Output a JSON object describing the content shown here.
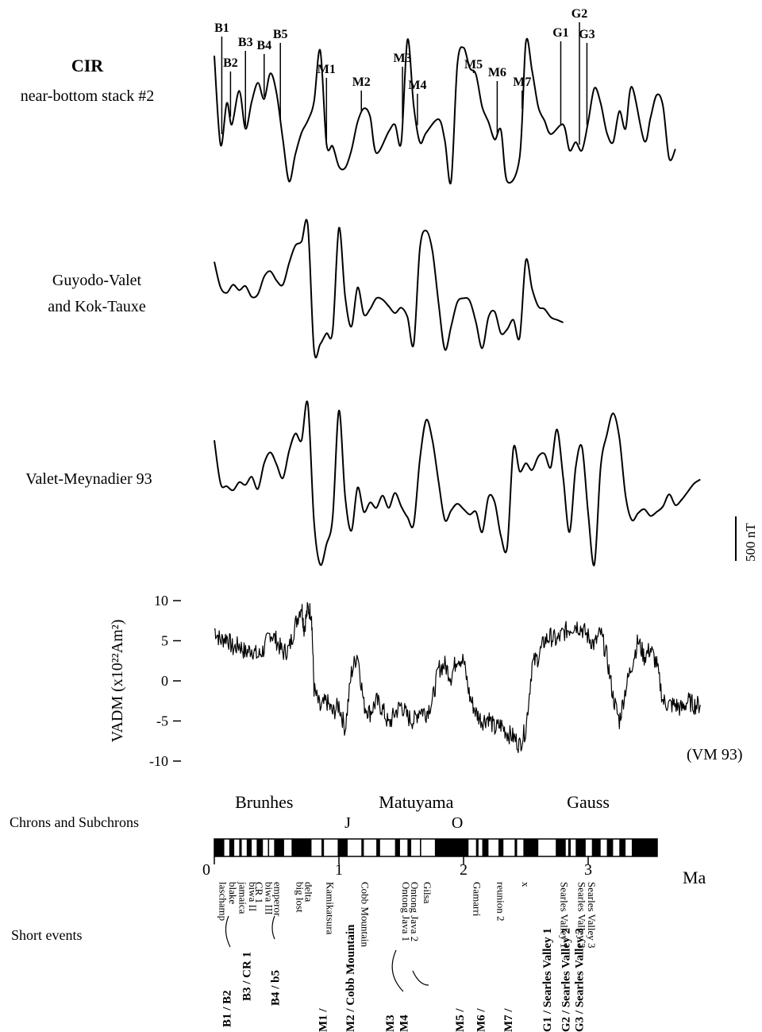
{
  "panels": [
    {
      "label_lines": [
        "CIR",
        "near-bottom stack #2"
      ]
    },
    {
      "label_lines": [
        "Guyodo-Valet",
        "and Kok-Tauxe"
      ]
    },
    {
      "label_lines": [
        "Valet-Meynadier 93"
      ]
    }
  ],
  "scale_bar_label": "500 nT",
  "event_markers": [
    {
      "id": "B1",
      "age_ma": 0.06
    },
    {
      "id": "B2",
      "age_ma": 0.13
    },
    {
      "id": "B3",
      "age_ma": 0.25
    },
    {
      "id": "B4",
      "age_ma": 0.4
    },
    {
      "id": "B5",
      "age_ma": 0.53
    },
    {
      "id": "M1",
      "age_ma": 0.9
    },
    {
      "id": "M2",
      "age_ma": 1.18
    },
    {
      "id": "M3",
      "age_ma": 1.51
    },
    {
      "id": "M4",
      "age_ma": 1.63
    },
    {
      "id": "M5",
      "age_ma": 2.08
    },
    {
      "id": "M6",
      "age_ma": 2.27
    },
    {
      "id": "M7",
      "age_ma": 2.47
    },
    {
      "id": "G1",
      "age_ma": 2.78
    },
    {
      "id": "G2",
      "age_ma": 2.93
    },
    {
      "id": "G3",
      "age_ma": 2.99
    }
  ],
  "chart_data": [
    {
      "type": "line",
      "title": "CIR near-bottom stack #2",
      "xlabel": "Ma",
      "xlim": [
        0,
        3.7
      ],
      "x": [
        0.0,
        0.05,
        0.1,
        0.14,
        0.2,
        0.25,
        0.3,
        0.35,
        0.4,
        0.45,
        0.5,
        0.55,
        0.6,
        0.65,
        0.7,
        0.75,
        0.8,
        0.85,
        0.9,
        0.95,
        1.0,
        1.05,
        1.1,
        1.15,
        1.2,
        1.25,
        1.3,
        1.4,
        1.45,
        1.5,
        1.55,
        1.6,
        1.65,
        1.7,
        1.8,
        1.85,
        1.9,
        1.95,
        2.0,
        2.05,
        2.1,
        2.15,
        2.2,
        2.25,
        2.3,
        2.35,
        2.45,
        2.5,
        2.55,
        2.6,
        2.65,
        2.7,
        2.8,
        2.85,
        2.9,
        2.95,
        3.0,
        3.05,
        3.1,
        3.15,
        3.2,
        3.25,
        3.3,
        3.35,
        3.45,
        3.5,
        3.55,
        3.6,
        3.65,
        3.7
      ],
      "values": [
        4.4,
        -2.2,
        0.9,
        -0.7,
        1.8,
        -1.0,
        1.0,
        2.4,
        1.2,
        3.1,
        1.6,
        -1.8,
        -4.9,
        -2.9,
        -1.3,
        -0.4,
        1.0,
        4.8,
        -2.1,
        -2.3,
        -3.8,
        -3.9,
        -2.6,
        -0.5,
        0.5,
        -0.1,
        -2.8,
        -1.2,
        -0.7,
        -2.0,
        5.6,
        0.7,
        -2.0,
        -1.3,
        -0.3,
        -1.9,
        -4.9,
        3.7,
        5.0,
        3.5,
        3.0,
        0.6,
        -0.5,
        -1.8,
        -1.1,
        -4.9,
        -3.1,
        5.4,
        3.3,
        0.6,
        -0.4,
        -1.4,
        -0.7,
        -2.6,
        -2.0,
        -2.6,
        -0.5,
        2.0,
        0.9,
        -1.3,
        -2.0,
        0.3,
        -1.0,
        2.1,
        -1.9,
        -0.2,
        1.5,
        0.7,
        -3.2,
        -2.5
      ]
    },
    {
      "type": "line",
      "title": "Guyodo-Valet and Kok-Tauxe",
      "xlabel": "Ma",
      "xlim": [
        0,
        2.8
      ],
      "x": [
        0.0,
        0.05,
        0.1,
        0.15,
        0.2,
        0.25,
        0.3,
        0.35,
        0.4,
        0.45,
        0.5,
        0.55,
        0.6,
        0.65,
        0.7,
        0.75,
        0.8,
        0.85,
        0.9,
        0.95,
        1.0,
        1.05,
        1.1,
        1.15,
        1.2,
        1.25,
        1.3,
        1.35,
        1.4,
        1.45,
        1.5,
        1.55,
        1.6,
        1.65,
        1.7,
        1.75,
        1.8,
        1.85,
        1.9,
        1.95,
        2.0,
        2.05,
        2.1,
        2.15,
        2.2,
        2.25,
        2.3,
        2.35,
        2.4,
        2.45,
        2.5,
        2.55,
        2.6,
        2.65,
        2.7,
        2.75,
        2.8
      ],
      "values": [
        1.5,
        -0.4,
        -0.8,
        -0.2,
        -0.6,
        -0.3,
        -1.1,
        -0.9,
        0.4,
        0.8,
        0.1,
        -0.2,
        1.4,
        2.7,
        3.0,
        4.2,
        -5.0,
        -4.6,
        -3.8,
        -3.6,
        4.0,
        -1.1,
        -3.3,
        -0.4,
        -2.4,
        -2.0,
        -1.2,
        -1.3,
        -1.8,
        -2.3,
        -1.9,
        -2.6,
        -4.6,
        2.5,
        3.8,
        2.3,
        -1.6,
        -5.0,
        -3.3,
        -1.5,
        -1.2,
        -1.4,
        -3.0,
        -4.9,
        -2.6,
        -2.2,
        -3.8,
        -3.5,
        -2.8,
        -4.1,
        1.6,
        -0.5,
        -1.8,
        -2.0,
        -2.6,
        -2.8,
        -3.0
      ]
    },
    {
      "type": "line",
      "title": "Valet-Meynadier 93",
      "xlabel": "Ma",
      "xlim": [
        0,
        3.9
      ],
      "x": [
        0.0,
        0.05,
        0.1,
        0.15,
        0.2,
        0.25,
        0.3,
        0.35,
        0.4,
        0.45,
        0.5,
        0.55,
        0.6,
        0.65,
        0.7,
        0.75,
        0.8,
        0.85,
        0.9,
        0.95,
        1.0,
        1.05,
        1.1,
        1.15,
        1.2,
        1.25,
        1.3,
        1.35,
        1.4,
        1.45,
        1.5,
        1.55,
        1.6,
        1.65,
        1.7,
        1.75,
        1.8,
        1.85,
        1.9,
        1.95,
        2.0,
        2.05,
        2.1,
        2.15,
        2.2,
        2.25,
        2.3,
        2.35,
        2.4,
        2.45,
        2.5,
        2.55,
        2.6,
        2.65,
        2.7,
        2.75,
        2.8,
        2.85,
        2.9,
        2.95,
        3.0,
        3.05,
        3.1,
        3.15,
        3.2,
        3.25,
        3.3,
        3.35,
        3.4,
        3.45,
        3.5,
        3.55,
        3.6,
        3.65,
        3.7,
        3.75,
        3.8,
        3.85,
        3.9
      ],
      "values": [
        2.4,
        -0.8,
        -1.0,
        -1.3,
        -0.7,
        -0.9,
        -0.3,
        -1.2,
        0.7,
        1.5,
        0.6,
        -0.4,
        1.6,
        2.9,
        2.4,
        5.1,
        -3.6,
        -6.8,
        -5.3,
        -3.3,
        4.6,
        -1.8,
        -4.3,
        -1.1,
        -2.9,
        -2.2,
        -2.6,
        -1.7,
        -2.6,
        -1.5,
        -2.5,
        -3.3,
        -3.8,
        1.0,
        3.9,
        2.4,
        -0.7,
        -3.5,
        -2.8,
        -2.3,
        -2.7,
        -3.1,
        -2.9,
        -4.4,
        -1.8,
        -2.2,
        -4.7,
        -5.5,
        1.8,
        0.1,
        0.7,
        0.2,
        1.2,
        1.4,
        0.4,
        3.2,
        -0.4,
        -4.4,
        0.4,
        1.9,
        -3.0,
        -6.8,
        0.4,
        2.8,
        4.4,
        2.6,
        -1.7,
        -3.5,
        -3.0,
        -2.7,
        -3.2,
        -2.9,
        -2.5,
        -1.6,
        -2.4,
        -2.0,
        -1.4,
        -0.8,
        -0.5
      ]
    },
    {
      "type": "line",
      "title": "VADM (VM 93)",
      "ylabel": "VADM (x10²²Am²)",
      "xlabel": "Ma",
      "ylim": [
        -10,
        10
      ],
      "yticks": [
        10,
        5,
        0,
        -5,
        -10
      ],
      "xlim": [
        0,
        3.9
      ],
      "x": [
        0.0,
        0.05,
        0.1,
        0.15,
        0.2,
        0.25,
        0.3,
        0.35,
        0.4,
        0.45,
        0.5,
        0.55,
        0.6,
        0.65,
        0.7,
        0.72,
        0.75,
        0.78,
        0.8,
        0.85,
        0.9,
        0.95,
        1.0,
        1.05,
        1.1,
        1.15,
        1.2,
        1.25,
        1.3,
        1.35,
        1.4,
        1.45,
        1.5,
        1.55,
        1.6,
        1.65,
        1.7,
        1.75,
        1.8,
        1.85,
        1.9,
        1.95,
        2.0,
        2.05,
        2.1,
        2.15,
        2.2,
        2.25,
        2.3,
        2.35,
        2.4,
        2.45,
        2.5,
        2.55,
        2.6,
        2.65,
        2.7,
        2.75,
        2.8,
        2.85,
        2.9,
        2.95,
        3.0,
        3.05,
        3.1,
        3.15,
        3.2,
        3.25,
        3.3,
        3.35,
        3.4,
        3.45,
        3.5,
        3.55,
        3.6,
        3.65,
        3.7,
        3.75,
        3.8,
        3.85,
        3.9
      ],
      "values": [
        6.5,
        5.0,
        5.5,
        4.0,
        4.5,
        3.5,
        4.0,
        3.0,
        4.0,
        6.0,
        5.0,
        3.5,
        4.0,
        7.0,
        9.5,
        6.5,
        9.0,
        8.5,
        -1.0,
        -3.5,
        -2.5,
        -4.0,
        -3.0,
        -6.0,
        1.0,
        3.5,
        -3.0,
        -4.0,
        -2.5,
        -3.5,
        -5.5,
        -4.0,
        -3.0,
        -4.5,
        -5.0,
        -3.5,
        -4.0,
        -2.5,
        1.5,
        2.0,
        0.5,
        3.0,
        2.5,
        -2.0,
        -4.0,
        -5.0,
        -4.5,
        -6.0,
        -5.5,
        -6.5,
        -7.0,
        -8.0,
        -6.0,
        2.0,
        3.0,
        5.0,
        5.5,
        5.0,
        6.0,
        6.5,
        7.0,
        6.5,
        5.5,
        4.5,
        6.0,
        3.0,
        -2.0,
        -5.0,
        -1.0,
        2.0,
        5.0,
        3.0,
        4.0,
        2.0,
        -2.5,
        -3.0,
        -3.0,
        -3.5,
        -2.5,
        -3.0,
        -3.0
      ]
    },
    {
      "type": "bar",
      "title": "Chrons and Subchrons",
      "xlabel": "Ma",
      "xlim": [
        0,
        3.6
      ],
      "axis_ticks": [
        "0",
        "1",
        "2",
        "3"
      ],
      "axis_unit": "Ma",
      "chron_names": [
        {
          "name": "Brunhes",
          "age_ma": 0.4
        },
        {
          "name": "Matuyama",
          "age_ma": 1.62
        },
        {
          "name": "Gauss",
          "age_ma": 3.0
        }
      ],
      "subchron_letters": [
        {
          "name": "J",
          "age_ma": 1.07
        },
        {
          "name": "O",
          "age_ma": 1.95
        }
      ],
      "normal_intervals_ma": [
        [
          0.0,
          0.08
        ],
        [
          0.12,
          0.16
        ],
        [
          0.2,
          0.22
        ],
        [
          0.26,
          0.3
        ],
        [
          0.34,
          0.39
        ],
        [
          0.43,
          0.44
        ],
        [
          0.48,
          0.56
        ],
        [
          0.62,
          0.78
        ],
        [
          0.86,
          0.88
        ],
        [
          0.99,
          1.07
        ],
        [
          1.18,
          1.2
        ],
        [
          1.3,
          1.33
        ],
        [
          1.45,
          1.49
        ],
        [
          1.55,
          1.58
        ],
        [
          1.65,
          1.66
        ],
        [
          1.77,
          2.04
        ],
        [
          2.1,
          2.12
        ],
        [
          2.15,
          2.2
        ],
        [
          2.28,
          2.32
        ],
        [
          2.41,
          2.43
        ],
        [
          2.48,
          2.6
        ],
        [
          2.74,
          2.82
        ],
        [
          2.84,
          2.86
        ],
        [
          2.9,
          2.98
        ],
        [
          3.03,
          3.1
        ],
        [
          3.15,
          3.2
        ],
        [
          3.25,
          3.3
        ],
        [
          3.35,
          3.6
        ]
      ]
    }
  ],
  "bottom_axis": {
    "row_label": "Chrons and Subchrons",
    "unit": "Ma"
  },
  "short_events": {
    "row_label": "Short events",
    "names": [
      {
        "text": "laschamp",
        "age_ma": 0.04
      },
      {
        "text": "blake",
        "age_ma": 0.12
      },
      {
        "text": "jamaica",
        "age_ma": 0.2
      },
      {
        "text": "biwa II",
        "age_ma": 0.28
      },
      {
        "text": "CR 1",
        "age_ma": 0.33
      },
      {
        "text": "biwa III",
        "age_ma": 0.41
      },
      {
        "text": "emperor",
        "age_ma": 0.48
      },
      {
        "text": "big lost",
        "age_ma": 0.66
      },
      {
        "text": "delta",
        "age_ma": 0.73
      },
      {
        "text": "Kamikatsura",
        "age_ma": 0.9
      },
      {
        "text": "Cobb Mountain",
        "age_ma": 1.18
      },
      {
        "text": "Ontong Java 1",
        "age_ma": 1.51
      },
      {
        "text": "Ontong Java 2",
        "age_ma": 1.58
      },
      {
        "text": "Gilsa",
        "age_ma": 1.68
      },
      {
        "text": "Gamarri",
        "age_ma": 2.08
      },
      {
        "text": "reunion 2",
        "age_ma": 2.27
      },
      {
        "text": "x",
        "age_ma": 2.47
      },
      {
        "text": "Searles Valley 1",
        "age_ma": 2.78
      },
      {
        "text": "Searles Valley 2",
        "age_ma": 2.92
      },
      {
        "text": "Searles Valley 3",
        "age_ma": 3.0
      }
    ],
    "groups": [
      {
        "text": "B1 / B2",
        "age_ma": 0.13
      },
      {
        "text": "B3 / CR 1",
        "age_ma": 0.29
      },
      {
        "text": "B4 / b5",
        "age_ma": 0.52
      },
      {
        "text": "M1 /",
        "age_ma": 0.9
      },
      {
        "text": "M2 / Cobb Mountain",
        "age_ma": 1.12
      },
      {
        "text": "M3",
        "age_ma": 1.44
      },
      {
        "text": "M4",
        "age_ma": 1.55
      },
      {
        "text": "M5 /",
        "age_ma": 2.0
      },
      {
        "text": "M6 /",
        "age_ma": 2.17
      },
      {
        "text": "M7 /",
        "age_ma": 2.39
      },
      {
        "text": "G1 / Searles Valley 1",
        "age_ma": 2.7
      },
      {
        "text": "G2 / Searles Valley 2",
        "age_ma": 2.85
      },
      {
        "text": "G3 / Searles Valley 3",
        "age_ma": 2.96
      }
    ]
  },
  "vadm_caption": "(VM 93)"
}
